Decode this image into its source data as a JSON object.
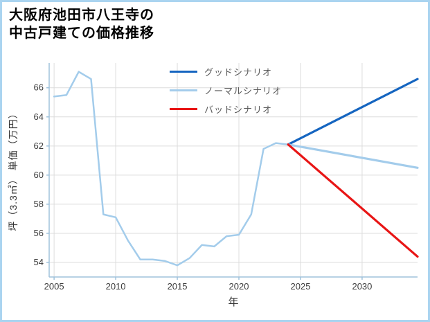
{
  "title": {
    "line1": "大阪府池田市八王寺の",
    "line2": "中古戸建ての価格推移"
  },
  "legend": {
    "items": [
      {
        "id": "good",
        "label": "グッドシナリオ"
      },
      {
        "id": "normal",
        "label": "ノーマルシナリオ"
      },
      {
        "id": "bad",
        "label": "バッドシナリオ"
      }
    ]
  },
  "chart_data": {
    "type": "line",
    "title": "大阪府池田市八王寺の中古戸建ての価格推移",
    "xlabel": "年",
    "ylabel": "坪（3.3㎡） 単価（万円）",
    "xlim": [
      2004.6,
      2034.5
    ],
    "ylim": [
      53.0,
      67.7
    ],
    "xticks": [
      2005,
      2010,
      2015,
      2020,
      2025,
      2030
    ],
    "yticks": [
      54,
      56,
      58,
      60,
      62,
      64,
      66
    ],
    "grid": true,
    "legend_position": "upper-center-inside",
    "colors": {
      "good": "#1565c0",
      "normal": "#a3cceb",
      "bad": "#e81515",
      "grid": "#dcdcdc",
      "spine": "#9fc2dc",
      "tick_text": "#3c3c3c"
    },
    "series": [
      {
        "id": "history",
        "label": "",
        "color": "normal",
        "width": 2.5,
        "x": [
          2005,
          2006,
          2007,
          2008,
          2009,
          2010,
          2011,
          2012,
          2013,
          2014,
          2015,
          2016,
          2017,
          2018,
          2019,
          2020,
          2021,
          2022,
          2023,
          2024
        ],
        "y": [
          65.4,
          65.5,
          67.1,
          66.6,
          57.3,
          57.1,
          55.5,
          54.2,
          54.2,
          54.1,
          53.8,
          54.3,
          55.2,
          55.1,
          55.8,
          55.9,
          57.3,
          61.8,
          62.2,
          62.1
        ]
      },
      {
        "id": "good",
        "label": "グッドシナリオ",
        "color": "good",
        "width": 3.2,
        "x": [
          2024,
          2034.5
        ],
        "y": [
          62.1,
          66.6
        ]
      },
      {
        "id": "normal",
        "label": "ノーマルシナリオ",
        "color": "normal",
        "width": 3.2,
        "x": [
          2024,
          2034.5
        ],
        "y": [
          62.1,
          60.5
        ]
      },
      {
        "id": "bad",
        "label": "バッドシナリオ",
        "color": "bad",
        "width": 3.2,
        "x": [
          2024,
          2034.5
        ],
        "y": [
          62.1,
          54.4
        ]
      }
    ]
  }
}
